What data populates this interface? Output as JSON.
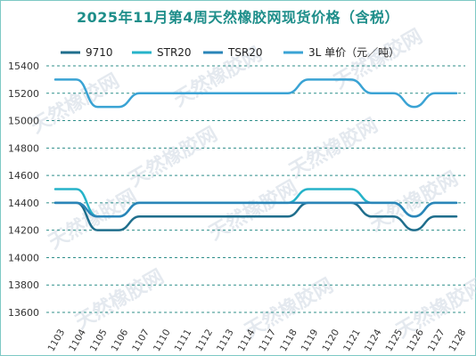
{
  "chart_data": {
    "type": "line",
    "title": "2025年11月第4周天然橡胶网现货价格（含税）",
    "xlabel": "",
    "ylabel": "",
    "categories": [
      "1103",
      "1104",
      "1105",
      "1106",
      "1107",
      "1110",
      "1111",
      "1112",
      "1113",
      "1114",
      "1117",
      "1118",
      "1119",
      "1120",
      "1121",
      "1124",
      "1125",
      "1126",
      "1127",
      "1128"
    ],
    "ylim": [
      13600,
      15400
    ],
    "yticks": [
      13600,
      13800,
      14000,
      14200,
      14400,
      14600,
      14800,
      15000,
      15200,
      15400
    ],
    "grid": "horizontal-dashed",
    "legend_position": "top",
    "series": [
      {
        "name": "9710",
        "color": "#1f6e8c",
        "width": 2.5,
        "values": [
          14400,
          14400,
          14200,
          14200,
          14300,
          14300,
          14300,
          14300,
          14300,
          14300,
          14300,
          14300,
          14400,
          14400,
          14400,
          14300,
          14300,
          14200,
          14300,
          14300
        ]
      },
      {
        "name": "STR20",
        "color": "#26b3c9",
        "width": 2.5,
        "values": [
          14500,
          14500,
          14300,
          14300,
          14400,
          14400,
          14400,
          14400,
          14400,
          14400,
          14400,
          14400,
          14500,
          14500,
          14500,
          14400,
          14400,
          14300,
          14400,
          14400
        ]
      },
      {
        "name": "TSR20",
        "color": "#2a85b8",
        "width": 2.5,
        "values": [
          14400,
          14400,
          14300,
          14300,
          14400,
          14400,
          14400,
          14400,
          14400,
          14400,
          14400,
          14400,
          14400,
          14400,
          14400,
          14400,
          14400,
          14300,
          14400,
          14400
        ]
      },
      {
        "name": "3L 单价（元／吨）",
        "color": "#3aa3d4",
        "width": 2.5,
        "values": [
          15300,
          15300,
          15100,
          15100,
          15200,
          15200,
          15200,
          15200,
          15200,
          15200,
          15200,
          15200,
          15300,
          15300,
          15300,
          15200,
          15200,
          15100,
          15200,
          15200
        ]
      }
    ]
  },
  "watermark": "天然橡胶网"
}
